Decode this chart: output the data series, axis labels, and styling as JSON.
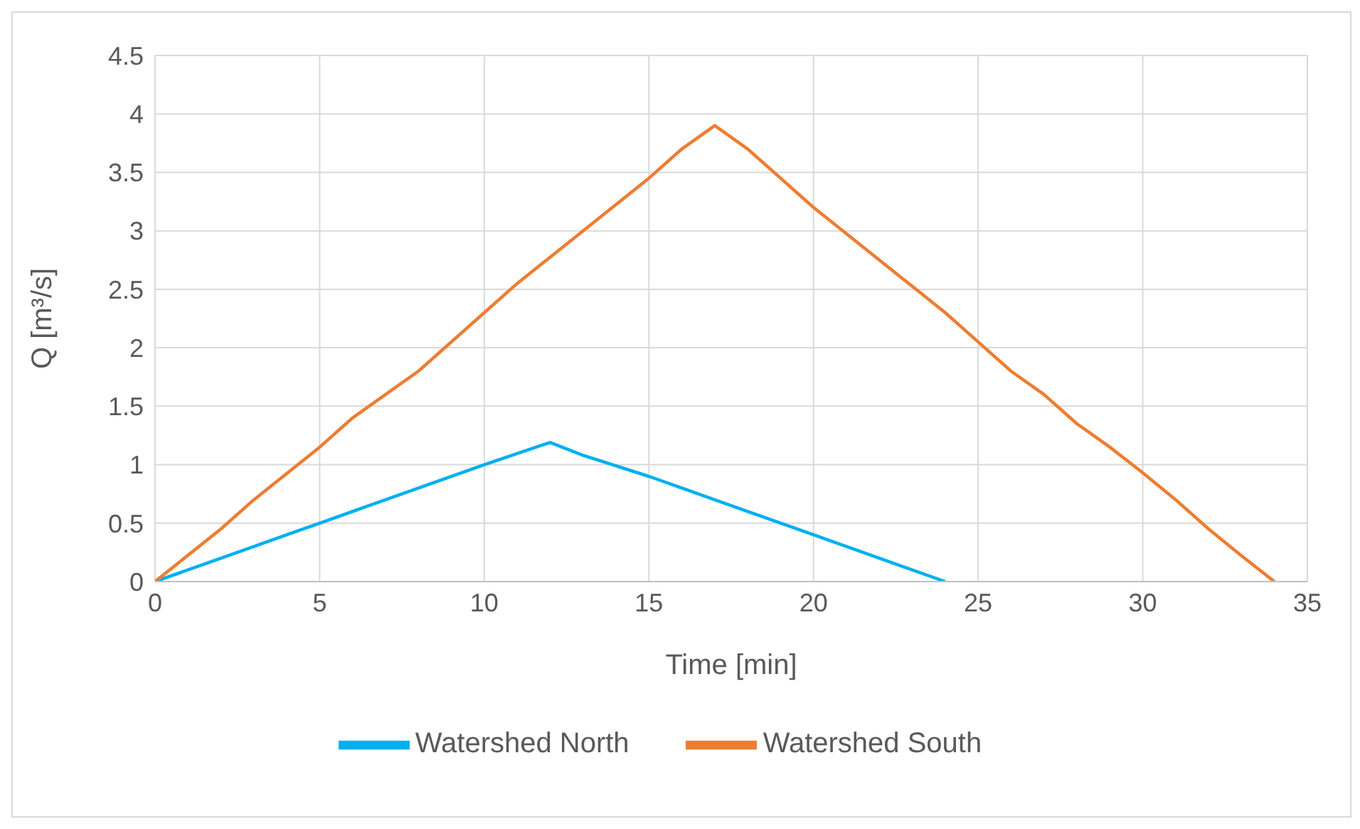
{
  "chart_data": {
    "type": "line",
    "xlabel": "Time [min]",
    "ylabel": "Q [m³/s]",
    "xlim": [
      0,
      35
    ],
    "xticks": [
      0,
      5,
      10,
      15,
      20,
      25,
      30,
      35
    ],
    "ylim": [
      0,
      4.5
    ],
    "yticks": [
      0,
      0.5,
      1,
      1.5,
      2,
      2.5,
      3,
      3.5,
      4,
      4.5
    ],
    "grid": true,
    "legend": "bottom",
    "marker": "none",
    "line_style": "solid",
    "series": [
      {
        "name": "Watershed North",
        "color": "#00b0f0",
        "x": [
          0,
          2,
          4,
          5,
          7,
          10,
          12,
          13,
          15,
          16,
          18,
          20,
          21,
          22,
          24
        ],
        "values": [
          0,
          0.2,
          0.4,
          0.5,
          0.7,
          1.0,
          1.19,
          1.08,
          0.9,
          0.8,
          0.6,
          0.4,
          0.3,
          0.2,
          0
        ]
      },
      {
        "name": "Watershed South",
        "color": "#ed7d31",
        "x": [
          0,
          2,
          3,
          5,
          6,
          7,
          8,
          10,
          11,
          13,
          15,
          16,
          17,
          18,
          19,
          20,
          22,
          24,
          25,
          26,
          27,
          28,
          29,
          30,
          31,
          32,
          33,
          34
        ],
        "values": [
          0,
          0.45,
          0.7,
          1.15,
          1.4,
          1.6,
          1.8,
          2.3,
          2.55,
          3.0,
          3.45,
          3.7,
          3.9,
          3.7,
          3.45,
          3.2,
          2.75,
          2.3,
          2.05,
          1.8,
          1.6,
          1.35,
          1.15,
          0.93,
          0.7,
          0.45,
          0.22,
          0
        ]
      }
    ]
  }
}
